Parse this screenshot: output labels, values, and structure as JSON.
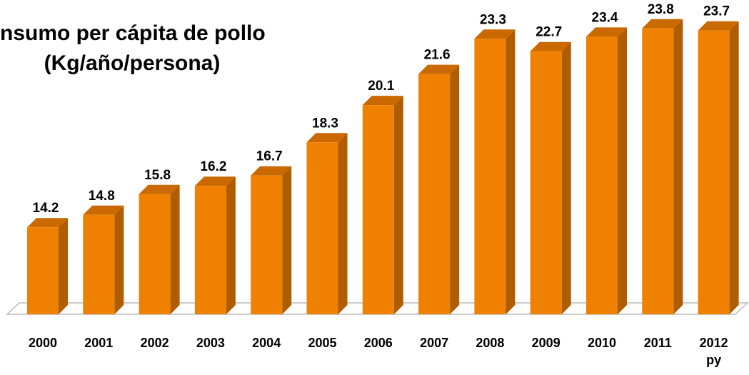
{
  "chart_data": {
    "type": "bar3d",
    "title": "nsumo per cápita de pollo",
    "subtitle": "(Kg/año/persona)",
    "categories": [
      "2000",
      "2001",
      "2002",
      "2003",
      "2004",
      "2005",
      "2006",
      "2007",
      "2008",
      "2009",
      "2010",
      "2011",
      "2012 py"
    ],
    "values": [
      14.2,
      14.8,
      15.8,
      16.2,
      16.7,
      18.3,
      20.1,
      21.6,
      23.3,
      22.7,
      23.4,
      23.8,
      23.7
    ],
    "color": "#f08000",
    "ylim": [
      10,
      24
    ]
  }
}
